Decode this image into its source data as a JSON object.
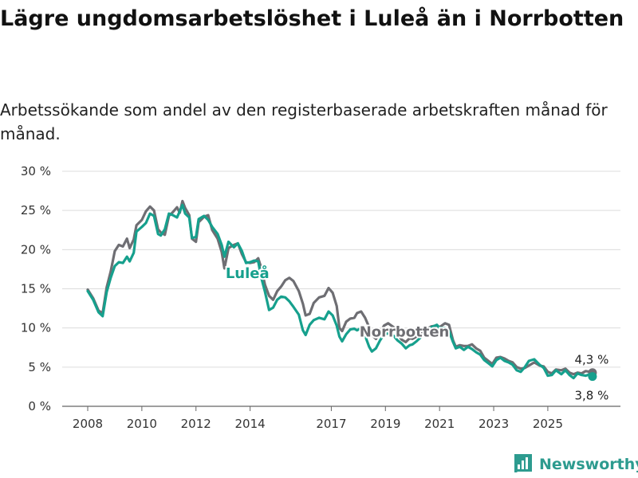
{
  "title": "Lägre ungdomsarbetslöshet i Luleå än i Norrbotten",
  "subtitle": "Arbetssökande som andel av den registerbaserade arbetskraften månad för månad.",
  "brand": {
    "name": "Newsworthy",
    "icon": "newsworthy-logo-icon",
    "color": "#2d9b8f"
  },
  "chart_data": {
    "type": "line",
    "title": "Lägre ungdomsarbetslöshet i Luleå än i Norrbotten",
    "xlabel": "",
    "ylabel": "",
    "ylim": [
      0,
      30
    ],
    "xlim": [
      2008,
      2026.8
    ],
    "y_ticks": [
      0,
      5,
      10,
      15,
      20,
      25,
      30
    ],
    "y_tick_labels": [
      "0 %",
      "5 %",
      "10 %",
      "15 %",
      "20 %",
      "25 %",
      "30 %"
    ],
    "x_ticks": [
      2008,
      2010,
      2012,
      2014,
      2017,
      2019,
      2021,
      2023,
      2025
    ],
    "x_tick_labels": [
      "2008",
      "2010",
      "2012",
      "2014",
      "2017",
      "2019",
      "2021",
      "2023",
      "2025"
    ],
    "grid": true,
    "series": [
      {
        "name": "Norrbotten",
        "label": "Norrbotten",
        "color": "#6e6e73",
        "end_label": "4,3 %",
        "points": [
          [
            2008.0,
            14.9
          ],
          [
            2008.2,
            13.8
          ],
          [
            2008.4,
            12.2
          ],
          [
            2008.55,
            11.9
          ],
          [
            2008.7,
            15.2
          ],
          [
            2008.85,
            17.2
          ],
          [
            2009.0,
            19.8
          ],
          [
            2009.15,
            20.6
          ],
          [
            2009.3,
            20.4
          ],
          [
            2009.45,
            21.4
          ],
          [
            2009.55,
            20.2
          ],
          [
            2009.7,
            21.3
          ],
          [
            2009.8,
            23.1
          ],
          [
            2010.0,
            23.8
          ],
          [
            2010.15,
            24.9
          ],
          [
            2010.3,
            25.5
          ],
          [
            2010.45,
            25.0
          ],
          [
            2010.6,
            22.6
          ],
          [
            2010.7,
            22.2
          ],
          [
            2010.85,
            21.9
          ],
          [
            2011.0,
            24.3
          ],
          [
            2011.15,
            24.8
          ],
          [
            2011.3,
            25.4
          ],
          [
            2011.4,
            24.7
          ],
          [
            2011.5,
            26.2
          ],
          [
            2011.6,
            25.3
          ],
          [
            2011.75,
            24.4
          ],
          [
            2011.85,
            21.4
          ],
          [
            2012.0,
            21.0
          ],
          [
            2012.1,
            23.5
          ],
          [
            2012.3,
            24.2
          ],
          [
            2012.45,
            24.4
          ],
          [
            2012.6,
            22.5
          ],
          [
            2012.8,
            21.4
          ],
          [
            2012.95,
            19.7
          ],
          [
            2013.05,
            17.6
          ],
          [
            2013.2,
            20.2
          ],
          [
            2013.4,
            20.6
          ],
          [
            2013.55,
            20.8
          ],
          [
            2013.7,
            19.4
          ],
          [
            2013.85,
            18.4
          ],
          [
            2014.0,
            18.3
          ],
          [
            2014.15,
            18.4
          ],
          [
            2014.3,
            18.9
          ],
          [
            2014.4,
            17.8
          ],
          [
            2014.55,
            15.5
          ],
          [
            2014.7,
            14.1
          ],
          [
            2014.85,
            13.6
          ],
          [
            2015.0,
            14.7
          ],
          [
            2015.15,
            15.3
          ],
          [
            2015.3,
            16.1
          ],
          [
            2015.45,
            16.4
          ],
          [
            2015.6,
            16.0
          ],
          [
            2015.8,
            14.7
          ],
          [
            2015.95,
            13.1
          ],
          [
            2016.05,
            11.6
          ],
          [
            2016.2,
            11.8
          ],
          [
            2016.35,
            13.2
          ],
          [
            2016.55,
            13.9
          ],
          [
            2016.75,
            14.1
          ],
          [
            2016.9,
            15.1
          ],
          [
            2017.05,
            14.5
          ],
          [
            2017.2,
            12.8
          ],
          [
            2017.3,
            10.0
          ],
          [
            2017.4,
            9.6
          ],
          [
            2017.55,
            10.8
          ],
          [
            2017.7,
            11.2
          ],
          [
            2017.85,
            11.3
          ],
          [
            2017.95,
            11.9
          ],
          [
            2018.1,
            12.1
          ],
          [
            2018.25,
            11.3
          ],
          [
            2018.4,
            10.1
          ],
          [
            2018.5,
            9.1
          ],
          [
            2018.65,
            8.6
          ],
          [
            2018.8,
            9.5
          ],
          [
            2018.95,
            10.3
          ],
          [
            2019.1,
            10.6
          ],
          [
            2019.3,
            10.1
          ],
          [
            2019.45,
            9.2
          ],
          [
            2019.6,
            8.5
          ],
          [
            2019.75,
            8.2
          ],
          [
            2019.9,
            8.7
          ],
          [
            2020.0,
            8.6
          ],
          [
            2020.15,
            8.9
          ],
          [
            2020.3,
            9.2
          ],
          [
            2020.5,
            9.8
          ],
          [
            2020.7,
            10.2
          ],
          [
            2020.9,
            10.3
          ],
          [
            2021.0,
            10.1
          ],
          [
            2021.2,
            10.6
          ],
          [
            2021.35,
            10.4
          ],
          [
            2021.5,
            8.4
          ],
          [
            2021.6,
            7.6
          ],
          [
            2021.75,
            7.8
          ],
          [
            2021.9,
            7.7
          ],
          [
            2022.05,
            7.7
          ],
          [
            2022.2,
            7.9
          ],
          [
            2022.35,
            7.4
          ],
          [
            2022.5,
            7.1
          ],
          [
            2022.65,
            6.2
          ],
          [
            2022.8,
            5.8
          ],
          [
            2022.95,
            5.4
          ],
          [
            2023.1,
            6.2
          ],
          [
            2023.25,
            6.3
          ],
          [
            2023.4,
            6.1
          ],
          [
            2023.55,
            5.8
          ],
          [
            2023.7,
            5.6
          ],
          [
            2023.85,
            5.0
          ],
          [
            2024.0,
            4.8
          ],
          [
            2024.15,
            4.9
          ],
          [
            2024.3,
            5.2
          ],
          [
            2024.5,
            5.6
          ],
          [
            2024.7,
            5.2
          ],
          [
            2024.85,
            5.1
          ],
          [
            2025.0,
            4.4
          ],
          [
            2025.15,
            4.2
          ],
          [
            2025.3,
            4.7
          ],
          [
            2025.5,
            4.6
          ],
          [
            2025.65,
            4.8
          ],
          [
            2025.8,
            4.3
          ],
          [
            2025.95,
            4.1
          ],
          [
            2026.1,
            4.3
          ],
          [
            2026.25,
            4.2
          ],
          [
            2026.4,
            4.5
          ],
          [
            2026.55,
            4.4
          ],
          [
            2026.65,
            4.3
          ]
        ]
      },
      {
        "name": "Luleå",
        "label": "Luleå",
        "color": "#16a08d",
        "end_label": "3,8 %",
        "points": [
          [
            2008.0,
            14.7
          ],
          [
            2008.2,
            13.6
          ],
          [
            2008.4,
            12.0
          ],
          [
            2008.55,
            11.5
          ],
          [
            2008.7,
            14.6
          ],
          [
            2008.85,
            16.4
          ],
          [
            2009.0,
            17.9
          ],
          [
            2009.15,
            18.4
          ],
          [
            2009.3,
            18.3
          ],
          [
            2009.45,
            19.1
          ],
          [
            2009.55,
            18.5
          ],
          [
            2009.7,
            19.6
          ],
          [
            2009.8,
            22.3
          ],
          [
            2010.0,
            22.9
          ],
          [
            2010.15,
            23.4
          ],
          [
            2010.3,
            24.6
          ],
          [
            2010.45,
            24.3
          ],
          [
            2010.6,
            22.0
          ],
          [
            2010.7,
            21.8
          ],
          [
            2010.85,
            22.6
          ],
          [
            2011.0,
            24.6
          ],
          [
            2011.15,
            24.4
          ],
          [
            2011.3,
            24.1
          ],
          [
            2011.4,
            24.9
          ],
          [
            2011.5,
            25.7
          ],
          [
            2011.6,
            24.6
          ],
          [
            2011.75,
            24.1
          ],
          [
            2011.85,
            21.5
          ],
          [
            2012.0,
            21.6
          ],
          [
            2012.1,
            23.9
          ],
          [
            2012.3,
            24.3
          ],
          [
            2012.45,
            23.8
          ],
          [
            2012.6,
            22.9
          ],
          [
            2012.8,
            22.0
          ],
          [
            2012.95,
            20.6
          ],
          [
            2013.05,
            19.1
          ],
          [
            2013.2,
            21.0
          ],
          [
            2013.4,
            20.3
          ],
          [
            2013.55,
            20.8
          ],
          [
            2013.7,
            19.8
          ],
          [
            2013.85,
            18.3
          ],
          [
            2014.0,
            18.4
          ],
          [
            2014.15,
            18.6
          ],
          [
            2014.3,
            18.5
          ],
          [
            2014.4,
            16.6
          ],
          [
            2014.55,
            14.6
          ],
          [
            2014.7,
            12.3
          ],
          [
            2014.85,
            12.6
          ],
          [
            2015.0,
            13.6
          ],
          [
            2015.15,
            14.0
          ],
          [
            2015.3,
            13.9
          ],
          [
            2015.45,
            13.4
          ],
          [
            2015.6,
            12.7
          ],
          [
            2015.8,
            11.7
          ],
          [
            2015.95,
            9.7
          ],
          [
            2016.05,
            9.1
          ],
          [
            2016.2,
            10.4
          ],
          [
            2016.35,
            11.0
          ],
          [
            2016.55,
            11.3
          ],
          [
            2016.75,
            11.1
          ],
          [
            2016.9,
            12.1
          ],
          [
            2017.05,
            11.6
          ],
          [
            2017.2,
            10.3
          ],
          [
            2017.3,
            8.9
          ],
          [
            2017.4,
            8.3
          ],
          [
            2017.55,
            9.2
          ],
          [
            2017.7,
            9.8
          ],
          [
            2017.85,
            9.9
          ],
          [
            2017.95,
            9.7
          ],
          [
            2018.1,
            10.0
          ],
          [
            2018.25,
            9.0
          ],
          [
            2018.4,
            7.6
          ],
          [
            2018.5,
            7.0
          ],
          [
            2018.65,
            7.4
          ],
          [
            2018.8,
            8.4
          ],
          [
            2018.95,
            9.2
          ],
          [
            2019.1,
            9.3
          ],
          [
            2019.3,
            9.0
          ],
          [
            2019.45,
            8.4
          ],
          [
            2019.6,
            8.0
          ],
          [
            2019.75,
            7.4
          ],
          [
            2019.9,
            7.8
          ],
          [
            2020.0,
            7.9
          ],
          [
            2020.15,
            8.3
          ],
          [
            2020.3,
            8.8
          ],
          [
            2020.5,
            9.6
          ],
          [
            2020.7,
            10.1
          ],
          [
            2020.9,
            10.4
          ],
          [
            2021.0,
            10.0
          ],
          [
            2021.2,
            10.0
          ],
          [
            2021.35,
            9.6
          ],
          [
            2021.5,
            8.2
          ],
          [
            2021.6,
            7.4
          ],
          [
            2021.75,
            7.6
          ],
          [
            2021.9,
            7.2
          ],
          [
            2022.05,
            7.6
          ],
          [
            2022.2,
            7.3
          ],
          [
            2022.35,
            6.9
          ],
          [
            2022.5,
            6.6
          ],
          [
            2022.65,
            5.9
          ],
          [
            2022.8,
            5.5
          ],
          [
            2022.95,
            5.1
          ],
          [
            2023.1,
            5.9
          ],
          [
            2023.25,
            6.2
          ],
          [
            2023.4,
            5.8
          ],
          [
            2023.55,
            5.6
          ],
          [
            2023.7,
            5.3
          ],
          [
            2023.85,
            4.6
          ],
          [
            2024.0,
            4.4
          ],
          [
            2024.15,
            5.0
          ],
          [
            2024.3,
            5.8
          ],
          [
            2024.5,
            6.0
          ],
          [
            2024.7,
            5.3
          ],
          [
            2024.85,
            4.9
          ],
          [
            2025.0,
            3.9
          ],
          [
            2025.15,
            4.0
          ],
          [
            2025.3,
            4.6
          ],
          [
            2025.5,
            4.1
          ],
          [
            2025.65,
            4.6
          ],
          [
            2025.8,
            4.0
          ],
          [
            2025.95,
            3.6
          ],
          [
            2026.1,
            4.2
          ],
          [
            2026.25,
            4.0
          ],
          [
            2026.4,
            3.9
          ],
          [
            2026.55,
            4.1
          ],
          [
            2026.65,
            3.8
          ]
        ]
      }
    ],
    "annotations": [
      {
        "text": "Luleå",
        "series": "Luleå",
        "at_x": 2013.9,
        "at_y": 17.0
      },
      {
        "text": "Norrbotten",
        "series": "Norrbotten",
        "at_x": 2019.7,
        "at_y": 9.5
      }
    ]
  }
}
